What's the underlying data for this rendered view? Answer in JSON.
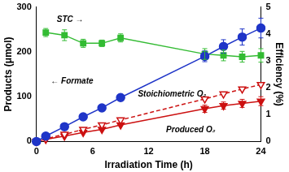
{
  "chart_data": {
    "type": "line",
    "x_label": "Irradiation Time (h)",
    "y_label": "Products (μmol)",
    "y2_label": "Efficiency (%)",
    "x": [
      0,
      1,
      3,
      5,
      7,
      9,
      18,
      20,
      22,
      24
    ],
    "xlim": [
      0,
      24
    ],
    "xticks": [
      0,
      6,
      12,
      18,
      24
    ],
    "ylim": [
      0,
      300
    ],
    "yticks": [
      0,
      100,
      200,
      300
    ],
    "y2lim": [
      0,
      5
    ],
    "y2ticks": [
      0,
      1,
      2,
      3,
      4,
      5
    ],
    "grid": false,
    "series": [
      {
        "name": "Formate",
        "color": "#1f35c8",
        "marker": "circle",
        "line_style": "solid",
        "values": [
          0,
          12,
          33,
          55,
          75,
          98,
          190,
          212,
          233,
          253
        ],
        "errors": [
          null,
          null,
          null,
          null,
          null,
          null,
          12,
          15,
          18,
          22
        ]
      },
      {
        "name": "STC",
        "color": "#33bb33",
        "marker": "square",
        "line_style": "solid",
        "axis": "y2",
        "values": [
          null,
          4.05,
          3.95,
          3.65,
          3.65,
          3.85,
          3.25,
          3.2,
          3.15,
          3.2
        ],
        "errors": [
          null,
          0.15,
          0.2,
          0.15,
          0.12,
          0.15,
          0.2,
          0.2,
          0.2,
          0.25
        ]
      },
      {
        "name": "Stoichiometric O₂",
        "color": "#cc1111",
        "marker": "triangle_down_open",
        "line_style": "dashed",
        "values": [
          0,
          6,
          16,
          27,
          37,
          48,
          95,
          106,
          117,
          127
        ]
      },
      {
        "name": "Produced O₂",
        "color": "#cc1111",
        "marker": "triangle_down",
        "line_style": "solid",
        "values": [
          0,
          5,
          12,
          20,
          27,
          37,
          73,
          80,
          85,
          90
        ],
        "errors": [
          null,
          null,
          null,
          null,
          null,
          null,
          8,
          8,
          9,
          10
        ]
      }
    ],
    "annotations": [
      "STC →",
      "← Formate",
      "Stoichiometric O₂",
      "Produced O₂"
    ]
  }
}
